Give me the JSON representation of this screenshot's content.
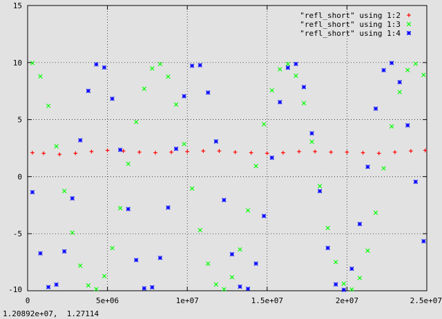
{
  "status_bar": {
    "coordinates": "1.20892e+07,  1.27114"
  },
  "chart_data": {
    "type": "scatter",
    "title": "",
    "xlabel": "",
    "ylabel": "",
    "xlim": [
      0,
      25000000
    ],
    "ylim": [
      -10,
      15
    ],
    "grid": true,
    "legend_position": "top-right",
    "x_ticks": [
      {
        "value": 0,
        "label": "0"
      },
      {
        "value": 5000000,
        "label": "5e+06"
      },
      {
        "value": 10000000,
        "label": "1e+07"
      },
      {
        "value": 15000000,
        "label": "1.5e+07"
      },
      {
        "value": 20000000,
        "label": "2e+07"
      },
      {
        "value": 25000000,
        "label": "2.5e+07"
      }
    ],
    "y_ticks": [
      {
        "value": 15,
        "label": "15"
      },
      {
        "value": 10,
        "label": "10"
      },
      {
        "value": 5,
        "label": "5"
      },
      {
        "value": 0,
        "label": "0"
      },
      {
        "value": -5,
        "label": "-5"
      },
      {
        "value": -10,
        "label": "-10"
      }
    ],
    "series": [
      {
        "name": "\"refl_short\" using 1:2",
        "color": "#ff0000",
        "marker": "plus",
        "x": [
          300000,
          1000000,
          2000000,
          3000000,
          4000000,
          5000000,
          6000000,
          7000000,
          8000000,
          9000000,
          10000000,
          11000000,
          12000000,
          13000000,
          14000000,
          15000000,
          16000000,
          17000000,
          18000000,
          19000000,
          20000000,
          21000000,
          22000000,
          23000000,
          24000000,
          24900000
        ],
        "y": [
          2.1,
          2.05,
          1.95,
          2.05,
          2.2,
          2.3,
          2.25,
          2.15,
          2.1,
          2.15,
          2.2,
          2.25,
          2.25,
          2.15,
          2.1,
          2.05,
          2.1,
          2.2,
          2.2,
          2.15,
          2.15,
          2.1,
          2.05,
          2.15,
          2.25,
          2.3
        ]
      },
      {
        "name": "\"refl_short\" using 1:3",
        "color": "#00ff00",
        "marker": "cross",
        "x": [
          300000,
          800000,
          1300000,
          1800000,
          2300000,
          2800000,
          3300000,
          3800000,
          4300000,
          4800000,
          5300000,
          5800000,
          6300000,
          6800000,
          7300000,
          7800000,
          8300000,
          8800000,
          9300000,
          9800000,
          10300000,
          10800000,
          11300000,
          11800000,
          12300000,
          12800000,
          13300000,
          13800000,
          14300000,
          14800000,
          15300000,
          15800000,
          16300000,
          16800000,
          17300000,
          17800000,
          18300000,
          18800000,
          19300000,
          19800000,
          20300000,
          20800000,
          21300000,
          21800000,
          22300000,
          22800000,
          23300000,
          23800000,
          24300000,
          24800000
        ],
        "y": [
          9.96,
          8.79,
          6.21,
          2.66,
          -1.26,
          -4.91,
          -7.8,
          -9.53,
          -9.86,
          -8.72,
          -6.26,
          -2.76,
          1.13,
          4.79,
          7.7,
          9.48,
          9.87,
          8.77,
          6.32,
          2.86,
          -1.04,
          -4.69,
          -7.63,
          -9.45,
          -9.88,
          -8.81,
          -6.38,
          -2.96,
          0.93,
          4.59,
          7.56,
          9.41,
          9.88,
          8.85,
          6.44,
          3.06,
          -0.83,
          -4.5,
          -7.49,
          -9.38,
          -9.89,
          -8.88,
          -6.49,
          -3.16,
          0.73,
          4.4,
          7.41,
          9.34,
          9.9,
          8.92
        ]
      },
      {
        "name": "\"refl_short\" using 1:4",
        "color": "#0000ff",
        "marker": "star",
        "x": [
          300000,
          800000,
          1300000,
          1800000,
          2300000,
          2800000,
          3300000,
          3800000,
          4300000,
          4800000,
          5300000,
          5800000,
          6300000,
          6800000,
          7300000,
          7800000,
          8300000,
          8800000,
          9300000,
          9800000,
          10300000,
          10800000,
          11300000,
          11800000,
          12300000,
          12800000,
          13300000,
          13800000,
          14300000,
          14800000,
          15300000,
          15800000,
          16300000,
          16800000,
          17300000,
          17800000,
          18300000,
          18800000,
          19300000,
          19800000,
          20300000,
          20800000,
          21300000,
          21800000,
          22300000,
          22800000,
          23300000,
          23800000,
          24300000,
          24800000
        ],
        "y": [
          -1.36,
          -6.72,
          -9.68,
          -9.46,
          -6.55,
          -1.9,
          3.19,
          7.52,
          9.84,
          9.57,
          6.83,
          2.35,
          -2.84,
          -7.31,
          -9.79,
          -9.7,
          -7.12,
          -2.71,
          2.44,
          7.05,
          9.72,
          9.77,
          7.37,
          3.09,
          -2.05,
          -6.8,
          -9.64,
          -9.83,
          -7.62,
          -3.45,
          1.66,
          6.53,
          9.55,
          9.88,
          7.85,
          3.8,
          -1.27,
          -6.25,
          -9.44,
          -9.92,
          -8.07,
          -4.15,
          0.86,
          5.96,
          9.33,
          9.96,
          8.28,
          4.5,
          -0.45,
          -5.66
        ]
      }
    ]
  }
}
